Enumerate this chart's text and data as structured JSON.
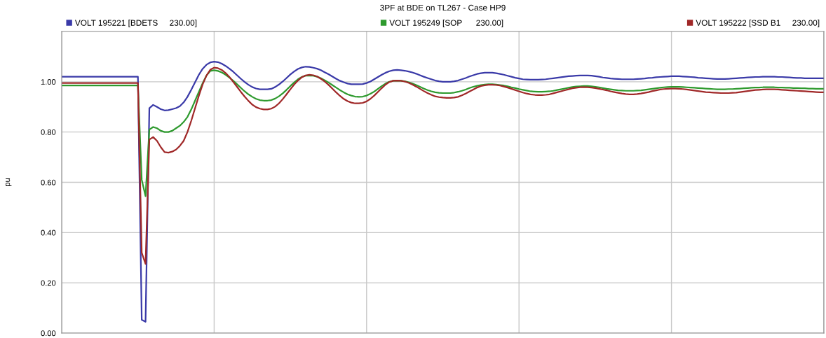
{
  "chart_data": {
    "type": "line",
    "title": "3PF at BDE on TL267 - Case HP9",
    "ylabel": "pu",
    "categories": [
      null,
      null,
      null,
      null,
      null,
      null,
      null,
      null,
      null,
      null,
      null,
      null,
      null,
      null,
      null,
      null,
      null,
      null,
      null,
      null,
      null,
      null,
      null,
      null,
      null,
      null,
      null,
      null,
      null,
      null,
      null,
      null,
      null,
      null,
      null,
      null,
      null,
      null,
      null,
      null,
      null,
      null,
      null,
      null,
      null,
      null,
      null,
      null,
      null,
      null,
      null,
      null,
      null,
      null,
      null,
      null,
      null,
      null,
      null,
      null,
      null,
      null,
      null,
      null,
      null,
      null,
      null,
      null,
      null,
      null,
      null,
      null,
      null,
      null,
      null,
      null,
      null,
      null,
      null,
      null,
      null,
      null,
      null,
      null,
      null,
      null,
      null,
      null,
      null,
      null,
      null,
      null,
      null,
      null,
      null,
      null,
      null,
      null,
      null,
      null,
      null,
      null,
      null,
      null,
      null,
      null,
      null,
      null,
      null,
      null,
      null,
      null,
      null,
      null,
      null,
      null,
      null,
      null,
      null,
      null,
      null,
      null,
      null,
      null,
      null,
      null,
      null,
      null,
      null,
      null,
      null,
      null,
      null,
      null,
      null,
      null,
      null,
      null,
      null,
      null,
      null,
      null,
      null,
      null,
      null,
      null,
      null,
      null,
      null,
      null,
      null,
      null,
      null,
      null,
      null,
      null,
      null,
      null,
      null,
      null,
      null,
      null,
      null,
      null,
      null,
      null,
      null,
      null,
      null,
      null,
      null,
      null,
      null,
      null,
      null,
      null,
      null,
      null,
      null,
      null,
      null,
      null,
      null,
      null,
      null,
      null,
      null,
      null,
      null,
      null,
      null,
      null,
      null,
      null,
      null,
      null,
      null,
      null,
      null,
      null,
      null
    ],
    "series": [
      {
        "name": "VOLT 195221 [BDETS     230.00]",
        "color": "#3a3aa8",
        "values": [
          1.02,
          1.02,
          1.02,
          1.02,
          1.02,
          1.02,
          1.02,
          1.02,
          1.02,
          1.02,
          1.02,
          1.02,
          1.02,
          1.02,
          1.02,
          1.02,
          1.02,
          1.02,
          1.02,
          1.02,
          1.02,
          0.053,
          0.045,
          0.895,
          0.908,
          0.9,
          0.891,
          0.886,
          0.887,
          0.891,
          0.895,
          0.903,
          0.918,
          0.94,
          0.968,
          0.998,
          1.028,
          1.052,
          1.068,
          1.077,
          1.08,
          1.078,
          1.072,
          1.063,
          1.052,
          1.04,
          1.026,
          1.012,
          0.999,
          0.988,
          0.979,
          0.973,
          0.97,
          0.97,
          0.97,
          0.972,
          0.979,
          0.989,
          1.001,
          1.015,
          1.029,
          1.041,
          1.051,
          1.057,
          1.06,
          1.059,
          1.056,
          1.052,
          1.046,
          1.038,
          1.03,
          1.021,
          1.012,
          1.004,
          0.998,
          0.993,
          0.99,
          0.99,
          0.99,
          0.991,
          0.995,
          1.001,
          1.01,
          1.019,
          1.028,
          1.036,
          1.042,
          1.046,
          1.047,
          1.046,
          1.044,
          1.041,
          1.037,
          1.032,
          1.026,
          1.02,
          1.015,
          1.01,
          1.005,
          1.002,
          1.0,
          1.0,
          1.0,
          1.002,
          1.005,
          1.01,
          1.015,
          1.021,
          1.026,
          1.031,
          1.034,
          1.036,
          1.036,
          1.036,
          1.034,
          1.031,
          1.028,
          1.024,
          1.02,
          1.016,
          1.013,
          1.01,
          1.009,
          1.008,
          1.008,
          1.008,
          1.009,
          1.01,
          1.012,
          1.014,
          1.016,
          1.018,
          1.02,
          1.022,
          1.023,
          1.024,
          1.025,
          1.025,
          1.025,
          1.024,
          1.022,
          1.02,
          1.017,
          1.015,
          1.013,
          1.012,
          1.011,
          1.01,
          1.01,
          1.01,
          1.01,
          1.011,
          1.012,
          1.013,
          1.015,
          1.016,
          1.018,
          1.019,
          1.02,
          1.021,
          1.022,
          1.022,
          1.022,
          1.021,
          1.02,
          1.019,
          1.018,
          1.016,
          1.015,
          1.014,
          1.013,
          1.012,
          1.011,
          1.011,
          1.011,
          1.012,
          1.013,
          1.014,
          1.015,
          1.016,
          1.017,
          1.018,
          1.019,
          1.019,
          1.02,
          1.02,
          1.02,
          1.02,
          1.019,
          1.019,
          1.018,
          1.017,
          1.016,
          1.015,
          1.015,
          1.014,
          1.014,
          1.014,
          1.014,
          1.014,
          1.014
        ]
      },
      {
        "name": "VOLT 195249 [SOP      230.00]",
        "color": "#2e9a2e",
        "values": [
          0.985,
          0.985,
          0.985,
          0.985,
          0.985,
          0.985,
          0.985,
          0.985,
          0.985,
          0.985,
          0.985,
          0.985,
          0.985,
          0.985,
          0.985,
          0.985,
          0.985,
          0.985,
          0.985,
          0.985,
          0.985,
          0.61,
          0.545,
          0.81,
          0.82,
          0.815,
          0.805,
          0.8,
          0.8,
          0.805,
          0.815,
          0.825,
          0.84,
          0.86,
          0.89,
          0.925,
          0.96,
          0.995,
          1.025,
          1.043,
          1.046,
          1.043,
          1.037,
          1.028,
          1.017,
          1.004,
          0.99,
          0.976,
          0.962,
          0.95,
          0.94,
          0.932,
          0.927,
          0.925,
          0.925,
          0.927,
          0.933,
          0.942,
          0.954,
          0.968,
          0.983,
          0.997,
          1.01,
          1.019,
          1.024,
          1.025,
          1.024,
          1.02,
          1.014,
          1.006,
          0.997,
          0.987,
          0.977,
          0.967,
          0.958,
          0.95,
          0.945,
          0.941,
          0.94,
          0.941,
          0.945,
          0.952,
          0.961,
          0.972,
          0.983,
          0.993,
          1.0,
          1.004,
          1.005,
          1.004,
          1.002,
          0.998,
          0.993,
          0.987,
          0.98,
          0.973,
          0.967,
          0.962,
          0.958,
          0.956,
          0.955,
          0.955,
          0.955,
          0.957,
          0.96,
          0.964,
          0.969,
          0.975,
          0.98,
          0.984,
          0.987,
          0.989,
          0.99,
          0.99,
          0.989,
          0.987,
          0.985,
          0.982,
          0.978,
          0.975,
          0.971,
          0.968,
          0.965,
          0.962,
          0.961,
          0.96,
          0.96,
          0.961,
          0.962,
          0.964,
          0.967,
          0.97,
          0.973,
          0.976,
          0.979,
          0.981,
          0.982,
          0.983,
          0.983,
          0.982,
          0.98,
          0.978,
          0.975,
          0.972,
          0.97,
          0.968,
          0.966,
          0.965,
          0.964,
          0.964,
          0.964,
          0.965,
          0.966,
          0.968,
          0.97,
          0.972,
          0.974,
          0.976,
          0.978,
          0.979,
          0.98,
          0.98,
          0.98,
          0.979,
          0.978,
          0.977,
          0.976,
          0.975,
          0.974,
          0.973,
          0.972,
          0.971,
          0.97,
          0.97,
          0.97,
          0.971,
          0.971,
          0.972,
          0.973,
          0.974,
          0.975,
          0.976,
          0.977,
          0.977,
          0.978,
          0.978,
          0.978,
          0.978,
          0.977,
          0.977,
          0.976,
          0.976,
          0.975,
          0.975,
          0.974,
          0.974,
          0.973,
          0.973,
          0.972,
          0.972,
          0.972
        ]
      },
      {
        "name": "VOLT 195222 [SSD B1     230.00]",
        "color": "#a02828",
        "values": [
          0.995,
          0.995,
          0.995,
          0.995,
          0.995,
          0.995,
          0.995,
          0.995,
          0.995,
          0.995,
          0.995,
          0.995,
          0.995,
          0.995,
          0.995,
          0.995,
          0.995,
          0.995,
          0.995,
          0.995,
          0.995,
          0.32,
          0.275,
          0.77,
          0.78,
          0.765,
          0.74,
          0.72,
          0.718,
          0.722,
          0.73,
          0.745,
          0.765,
          0.8,
          0.845,
          0.895,
          0.945,
          0.99,
          1.025,
          1.048,
          1.056,
          1.054,
          1.047,
          1.035,
          1.019,
          1.0,
          0.98,
          0.96,
          0.941,
          0.924,
          0.909,
          0.899,
          0.893,
          0.89,
          0.89,
          0.893,
          0.901,
          0.914,
          0.931,
          0.95,
          0.97,
          0.989,
          1.005,
          1.018,
          1.025,
          1.028,
          1.026,
          1.021,
          1.012,
          1.001,
          0.988,
          0.973,
          0.958,
          0.944,
          0.932,
          0.923,
          0.917,
          0.914,
          0.914,
          0.916,
          0.922,
          0.932,
          0.945,
          0.96,
          0.975,
          0.989,
          0.999,
          1.004,
          1.005,
          1.004,
          1.001,
          0.996,
          0.989,
          0.981,
          0.972,
          0.963,
          0.955,
          0.948,
          0.942,
          0.939,
          0.937,
          0.936,
          0.936,
          0.937,
          0.94,
          0.946,
          0.953,
          0.961,
          0.969,
          0.977,
          0.983,
          0.986,
          0.988,
          0.988,
          0.987,
          0.985,
          0.981,
          0.977,
          0.972,
          0.967,
          0.962,
          0.957,
          0.953,
          0.95,
          0.948,
          0.947,
          0.947,
          0.948,
          0.95,
          0.954,
          0.958,
          0.962,
          0.966,
          0.97,
          0.974,
          0.976,
          0.978,
          0.978,
          0.978,
          0.977,
          0.975,
          0.972,
          0.969,
          0.966,
          0.962,
          0.959,
          0.956,
          0.953,
          0.951,
          0.95,
          0.95,
          0.951,
          0.953,
          0.956,
          0.959,
          0.963,
          0.966,
          0.969,
          0.971,
          0.972,
          0.973,
          0.973,
          0.972,
          0.971,
          0.969,
          0.967,
          0.965,
          0.963,
          0.961,
          0.959,
          0.958,
          0.957,
          0.956,
          0.955,
          0.955,
          0.955,
          0.956,
          0.957,
          0.959,
          0.961,
          0.963,
          0.965,
          0.967,
          0.968,
          0.969,
          0.97,
          0.97,
          0.97,
          0.969,
          0.968,
          0.967,
          0.966,
          0.965,
          0.964,
          0.963,
          0.962,
          0.961,
          0.96,
          0.959,
          0.958,
          0.958
        ]
      }
    ],
    "ylim": [
      0,
      1.2
    ],
    "yticks": [
      {
        "value": 0,
        "label": "0.00"
      },
      {
        "value": 0.2,
        "label": "0.20"
      },
      {
        "value": 0.4,
        "label": "0.40"
      },
      {
        "value": 0.6,
        "label": "0.60"
      },
      {
        "value": 0.8,
        "label": "0.80"
      },
      {
        "value": 1.0,
        "label": "1.00"
      }
    ],
    "grid": true,
    "legend": "top",
    "marker": "none",
    "line_style": "solid",
    "tick_labels": "y"
  }
}
